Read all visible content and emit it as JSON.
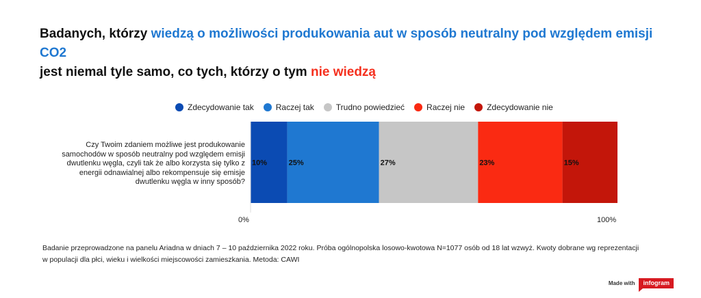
{
  "title": {
    "part1": "Badanych, którzy ",
    "part2_highlight": "wiedzą o możliwości produkowania aut w sposób neutralny pod względem emisji CO2",
    "part3": "jest niemal tyle samo, co tych, którzy o tym ",
    "part4_highlight": "nie wiedzą"
  },
  "question": "Czy Twoim zdaniem możliwe jest produkowanie samochodów w sposób neutralny pod względem emisji dwutlenku węgla, czyli tak że albo korzysta się tylko z energii odnawialnej albo rekompensuje się emisje dwutlenku węgla w inny sposób?",
  "axis": {
    "min_label": "0%",
    "max_label": "100%"
  },
  "footnote": "Badanie przeprowadzone na panelu Ariadna w dniach 7 – 10 października 2022 roku. Próba ogólnopolska losowo-kwotowa N=1077 osób od 18 lat wzwyż. Kwoty dobrane wg reprezentacji w populacji dla płci, wieku i wielkości miejscowości zamieszkania. Metoda: CAWI",
  "branding": {
    "made_with": "Made with",
    "brand": "infogram"
  },
  "chart_data": {
    "type": "bar",
    "orientation": "horizontal",
    "stacked": true,
    "categories": [
      "Czy Twoim zdaniem możliwe jest produkowanie samochodów w sposób neutralny pod względem emisji dwutlenku węgla, czyli tak że albo korzysta się tylko z energii odnawialnej albo rekompensuje się emisje dwutlenku węgla w inny sposób?"
    ],
    "xlim": [
      0,
      100
    ],
    "legend_position": "top",
    "grid": false,
    "series": [
      {
        "name": "Zdecydowanie tak",
        "values": [
          10
        ],
        "label": "10%",
        "color": "#0b4bb3"
      },
      {
        "name": "Raczej tak",
        "values": [
          25
        ],
        "label": "25%",
        "color": "#1f78d1"
      },
      {
        "name": "Trudno powiedzieć",
        "values": [
          27
        ],
        "label": "27%",
        "color": "#c6c6c6"
      },
      {
        "name": "Raczej nie",
        "values": [
          23
        ],
        "label": "23%",
        "color": "#fa2a12"
      },
      {
        "name": "Zdecydowanie nie",
        "values": [
          15
        ],
        "label": "15%",
        "color": "#c3160a"
      }
    ]
  }
}
